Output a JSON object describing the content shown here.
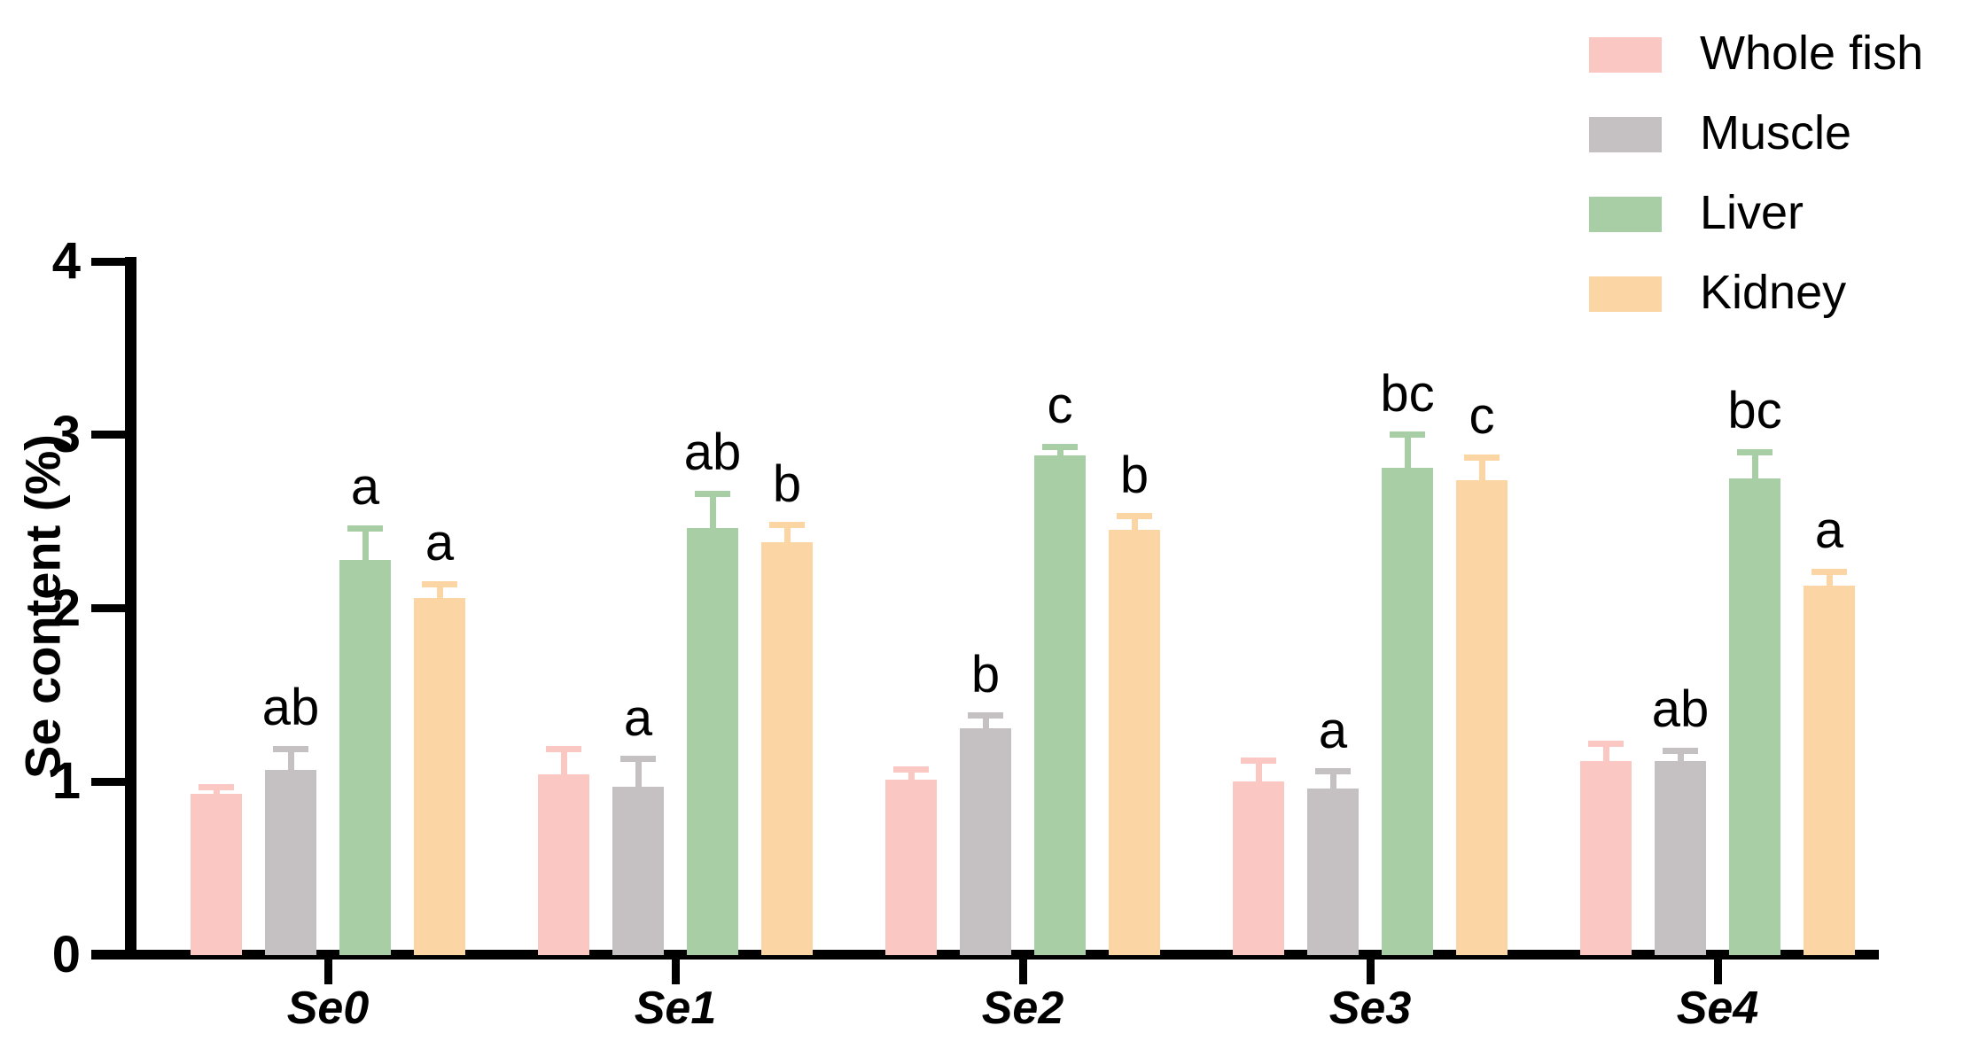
{
  "chart_data": {
    "type": "bar",
    "title": "",
    "ylabel": "Se content (%)",
    "xlabel": "",
    "ylim": [
      0,
      4
    ],
    "yticks": [
      "0",
      "1",
      "2",
      "3",
      "4"
    ],
    "grid": false,
    "legend_position": "top-right",
    "categories": [
      "Se0",
      "Se1",
      "Se2",
      "Se3",
      "Se4"
    ],
    "series": [
      {
        "name": "Whole fish",
        "color": "#FBC7C2",
        "values": [
          0.93,
          1.04,
          1.01,
          1.0,
          1.12
        ],
        "errors": [
          0.04,
          0.15,
          0.06,
          0.12,
          0.1
        ],
        "letters": [
          "",
          "",
          "",
          "",
          ""
        ]
      },
      {
        "name": "Muscle",
        "color": "#C5C0C2",
        "values": [
          1.07,
          0.97,
          1.31,
          0.96,
          1.12
        ],
        "errors": [
          0.12,
          0.16,
          0.07,
          0.1,
          0.06
        ],
        "letters": [
          "ab",
          "a",
          "b",
          "a",
          "ab"
        ]
      },
      {
        "name": "Liver",
        "color": "#A7CEA4",
        "values": [
          2.28,
          2.46,
          2.88,
          2.81,
          2.75
        ],
        "errors": [
          0.18,
          0.2,
          0.05,
          0.19,
          0.15
        ],
        "letters": [
          "a",
          "ab",
          "c",
          "bc",
          "bc"
        ]
      },
      {
        "name": "Kidney",
        "color": "#FCD5A4",
        "values": [
          2.06,
          2.38,
          2.45,
          2.74,
          2.13
        ],
        "errors": [
          0.08,
          0.1,
          0.08,
          0.13,
          0.08
        ],
        "letters": [
          "a",
          "b",
          "b",
          "c",
          "a"
        ]
      }
    ],
    "error_bar_style": "upper-only-cap",
    "axis_color": "#000000"
  }
}
